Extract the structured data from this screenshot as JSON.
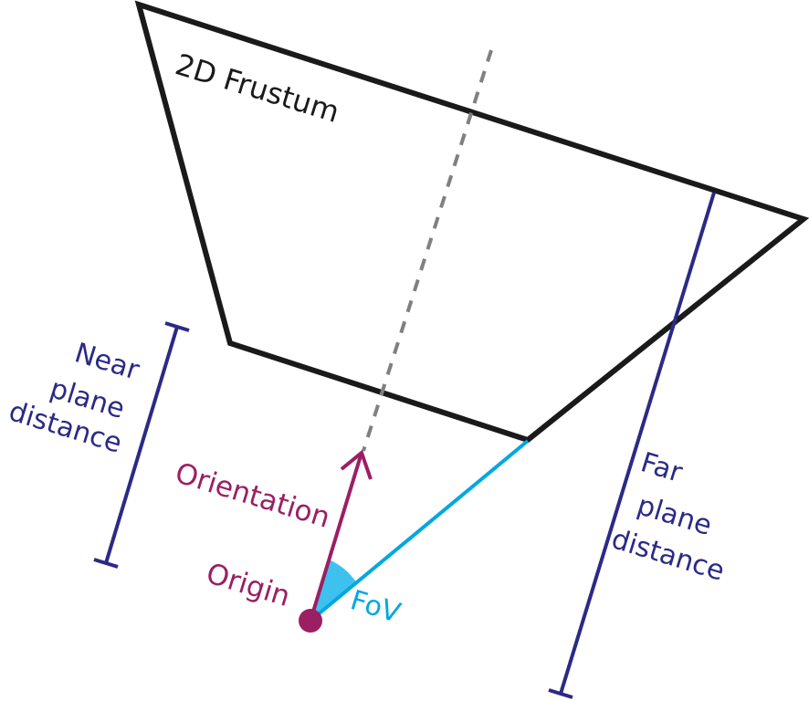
{
  "labels": {
    "frustum": "2D Frustum",
    "near_line1": "Near",
    "near_line2": "plane",
    "near_line3": "distance",
    "far_line1": "Far",
    "far_line2": "plane",
    "far_line3": "distance",
    "orientation": "Orientation",
    "origin": "Origin",
    "fov": "FoV"
  },
  "colors": {
    "frustum": "#1b1a1a",
    "axis": "#808080",
    "dimension": "#2b2a86",
    "orientation": "#9c1e63",
    "fov_line": "#00a8e0",
    "fov_wedge": "#3fc1f0"
  }
}
